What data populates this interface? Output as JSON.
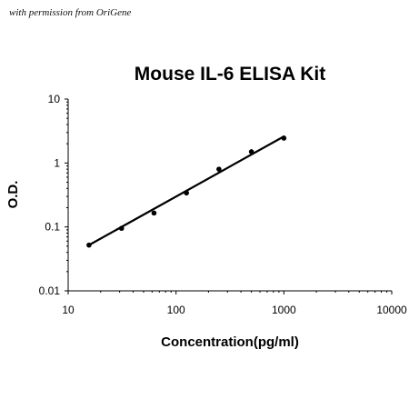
{
  "credit": "with permission from OriGene",
  "chart_data": {
    "type": "scatter",
    "title": "Mouse IL-6 ELISA Kit",
    "xlabel": "Concentration(pg/ml)",
    "ylabel": "O.D.",
    "x_scale": "log",
    "y_scale": "log",
    "xlim": [
      10,
      10000
    ],
    "ylim": [
      0.01,
      10
    ],
    "x_ticks": [
      10,
      100,
      1000,
      10000
    ],
    "x_tick_labels": [
      "10",
      "100",
      "1000",
      "10000"
    ],
    "y_ticks": [
      0.01,
      0.1,
      1,
      10
    ],
    "y_tick_labels": [
      "0.01",
      "0.1",
      "1",
      "10"
    ],
    "grid": false,
    "series": [
      {
        "points": [
          {
            "x": 15.6,
            "y": 0.052
          },
          {
            "x": 31.25,
            "y": 0.095
          },
          {
            "x": 62.5,
            "y": 0.165
          },
          {
            "x": 125,
            "y": 0.34
          },
          {
            "x": 250,
            "y": 0.8
          },
          {
            "x": 500,
            "y": 1.5
          },
          {
            "x": 1000,
            "y": 2.45
          }
        ],
        "color": "#000000"
      }
    ],
    "fit_line": {
      "x": [
        15.6,
        1000
      ],
      "y": [
        0.052,
        2.6
      ],
      "color": "#000000"
    }
  }
}
